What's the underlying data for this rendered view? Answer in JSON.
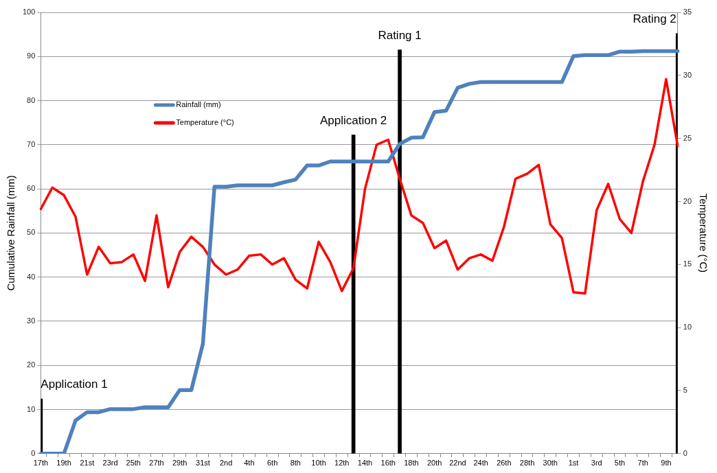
{
  "chart_data": {
    "type": "line",
    "ylabel": "Cumulative Rainfall (mm)",
    "y2label": "Temperature (°C)",
    "categories": [
      "17th",
      null,
      "19th",
      null,
      "21st",
      null,
      "23rd",
      null,
      "25th",
      null,
      "27th",
      null,
      "29th",
      null,
      "31st",
      null,
      "2nd",
      null,
      "4th",
      null,
      "6th",
      null,
      "8th",
      null,
      "10th",
      null,
      "12th",
      null,
      "14th",
      null,
      "16th",
      null,
      "18th",
      null,
      "20th",
      null,
      "22nd",
      null,
      "24th",
      null,
      "26th",
      null,
      "28th",
      null,
      "30th",
      null,
      "1st",
      null,
      "3rd",
      null,
      "5th",
      null,
      "7th",
      null,
      "9th",
      null
    ],
    "series": [
      {
        "name": "Rainfall (mm)",
        "color": "#4f81bd",
        "values": [
          0,
          0,
          0,
          7.5,
          9.4,
          9.4,
          10.1,
          10.1,
          10.1,
          10.5,
          10.5,
          10.5,
          14.4,
          14.4,
          24.9,
          60.5,
          60.5,
          60.8,
          60.8,
          60.8,
          60.8,
          61.5,
          62.1,
          65.3,
          65.3,
          66.2,
          66.2,
          66.2,
          66.2,
          66.2,
          66.2,
          70.2,
          71.6,
          71.7,
          77.4,
          77.7,
          82.9,
          83.8,
          84.2,
          84.2,
          84.2,
          84.2,
          84.2,
          84.2,
          84.2,
          84.2,
          90.1,
          90.3,
          90.3,
          90.3,
          91.1,
          91.1,
          91.2,
          91.2,
          91.2,
          91.2
        ]
      },
      {
        "name": "Temperature (°C)",
        "color": "#ff0000",
        "axis": "y2",
        "values": [
          19.4,
          21.1,
          20.5,
          18.8,
          14.2,
          16.4,
          15.1,
          15.2,
          15.8,
          13.7,
          18.9,
          13.2,
          16.0,
          17.2,
          16.4,
          15.0,
          14.2,
          14.6,
          15.7,
          15.8,
          15.0,
          15.5,
          13.8,
          13.1,
          16.8,
          15.2,
          12.9,
          14.7,
          21.0,
          24.5,
          24.9,
          21.8,
          18.9,
          18.3,
          16.3,
          16.9,
          14.6,
          15.5,
          15.8,
          15.3,
          18.0,
          21.8,
          22.2,
          22.9,
          18.2,
          17.1,
          12.8,
          12.7,
          19.3,
          21.4,
          18.6,
          17.5,
          21.6,
          24.5,
          29.7,
          24.4
        ]
      },
      {
        "color": "#000000",
        "type": "bar",
        "values": [
          12.4,
          null,
          null,
          null,
          null,
          null,
          null,
          null,
          null,
          null,
          null,
          null,
          null,
          null,
          null,
          null,
          null,
          null,
          null,
          null,
          null,
          null,
          null,
          null,
          null,
          null,
          null,
          72.2,
          null,
          null,
          null,
          91.5,
          null,
          null,
          null,
          null,
          null,
          null,
          null,
          null,
          null,
          null,
          null,
          null,
          null,
          null,
          null,
          null,
          null,
          null,
          null,
          null,
          null,
          null,
          null,
          95.2
        ]
      }
    ],
    "annotations": [
      "Application 1",
      "Application 2",
      "Rating 1",
      "Rating 2"
    ],
    "ylim": [
      0,
      100
    ],
    "yticks": [
      0,
      10,
      20,
      30,
      40,
      50,
      60,
      70,
      80,
      90,
      100
    ],
    "y2lim": [
      0,
      35
    ],
    "y2ticks": [
      0,
      5,
      10,
      15,
      20,
      25,
      30,
      35
    ],
    "grid": "y",
    "legend": "top left",
    "marker": "none",
    "line_style": "solid"
  }
}
